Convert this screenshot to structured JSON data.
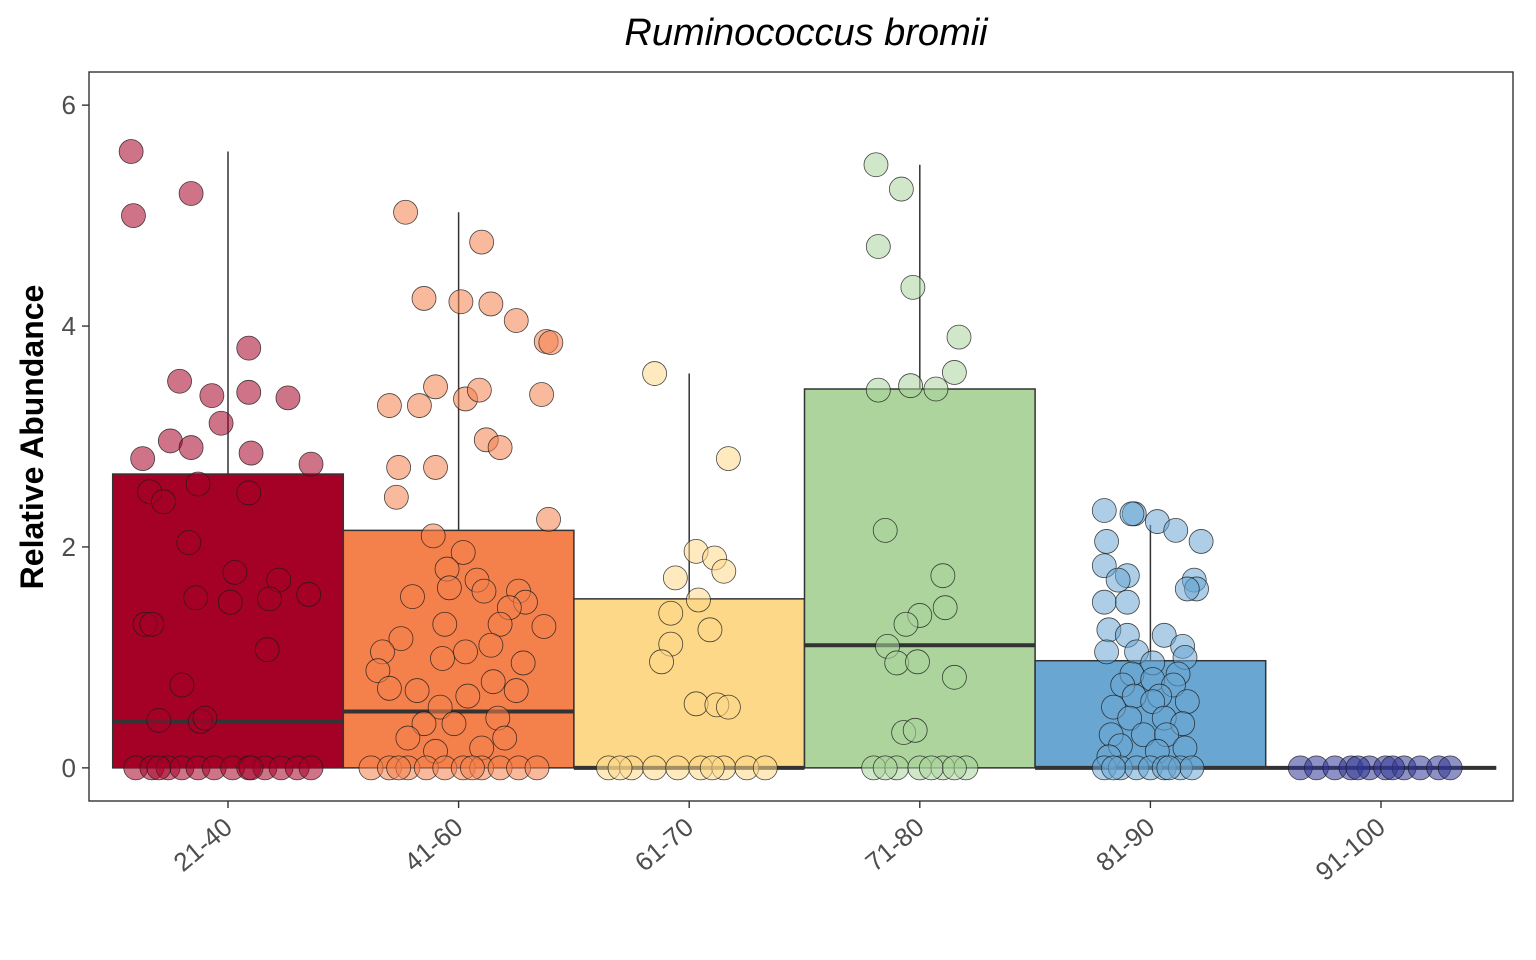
{
  "chart_data": {
    "type": "box",
    "title": "Ruminococcus bromii",
    "xlabel": "",
    "ylabel": "Relative Abundance",
    "ylim": [
      -0.3,
      6.3
    ],
    "y_ticks": [
      0,
      2,
      4,
      6
    ],
    "grid": false,
    "legend": "none",
    "categories": [
      "21-40",
      "41-60",
      "61-70",
      "71-80",
      "81-90",
      "91-100"
    ],
    "colors": [
      "#A50026",
      "#F4804C",
      "#FDD889",
      "#ACD49C",
      "#69A6D1",
      "#313695"
    ],
    "boxes": [
      {
        "lower": 0,
        "median": 0.42,
        "upper": 2.66,
        "whisker_low": 0,
        "whisker_high": 5.58
      },
      {
        "lower": 0,
        "median": 0.51,
        "upper": 2.15,
        "whisker_low": 0,
        "whisker_high": 5.03
      },
      {
        "lower": 0,
        "median": 0.0,
        "upper": 1.53,
        "whisker_low": 0,
        "whisker_high": 3.57
      },
      {
        "lower": 0,
        "median": 1.11,
        "upper": 3.43,
        "whisker_low": 0,
        "whisker_high": 5.46
      },
      {
        "lower": 0,
        "median": 0.0,
        "upper": 0.97,
        "whisker_low": 0,
        "whisker_high": 2.2
      },
      {
        "lower": 0,
        "median": 0.0,
        "upper": 0.0,
        "whisker_low": 0,
        "whisker_high": 0
      }
    ],
    "points": [
      [
        [
          -0.42,
          5.58
        ],
        [
          -0.41,
          5.0
        ],
        [
          -0.16,
          5.2
        ],
        [
          0.09,
          3.8
        ],
        [
          -0.21,
          3.5
        ],
        [
          -0.07,
          3.37
        ],
        [
          0.09,
          3.4
        ],
        [
          0.26,
          3.35
        ],
        [
          -0.03,
          3.12
        ],
        [
          -0.25,
          2.96
        ],
        [
          -0.16,
          2.9
        ],
        [
          0.1,
          2.85
        ],
        [
          -0.37,
          2.8
        ],
        [
          0.36,
          2.75
        ],
        [
          -0.34,
          2.5
        ],
        [
          -0.28,
          2.41
        ],
        [
          -0.13,
          2.57
        ],
        [
          0.09,
          2.49
        ],
        [
          -0.17,
          2.04
        ],
        [
          0.03,
          1.77
        ],
        [
          0.22,
          1.7
        ],
        [
          0.35,
          1.57
        ],
        [
          -0.14,
          1.54
        ],
        [
          0.01,
          1.5
        ],
        [
          0.18,
          1.53
        ],
        [
          -0.36,
          1.3
        ],
        [
          -0.33,
          1.3
        ],
        [
          0.17,
          1.07
        ],
        [
          -0.2,
          0.75
        ],
        [
          -0.3,
          0.43
        ],
        [
          -0.12,
          0.42
        ],
        [
          -0.1,
          0.45
        ],
        [
          -0.4,
          0
        ],
        [
          -0.33,
          0
        ],
        [
          -0.26,
          0
        ],
        [
          -0.2,
          0
        ],
        [
          -0.13,
          0
        ],
        [
          -0.06,
          0
        ],
        [
          0.02,
          0
        ],
        [
          0.09,
          0
        ],
        [
          0.16,
          0
        ],
        [
          0.23,
          0
        ],
        [
          0.3,
          0
        ],
        [
          0.36,
          0
        ],
        [
          -0.3,
          0
        ],
        [
          0.1,
          0
        ]
      ],
      [
        [
          -0.23,
          5.03
        ],
        [
          0.1,
          4.76
        ],
        [
          -0.15,
          4.25
        ],
        [
          0.01,
          4.22
        ],
        [
          0.14,
          4.2
        ],
        [
          0.25,
          4.05
        ],
        [
          0.38,
          3.86
        ],
        [
          0.4,
          3.85
        ],
        [
          -0.1,
          3.45
        ],
        [
          0.03,
          3.34
        ],
        [
          0.09,
          3.42
        ],
        [
          0.36,
          3.38
        ],
        [
          -0.3,
          3.28
        ],
        [
          -0.17,
          3.28
        ],
        [
          0.12,
          2.97
        ],
        [
          0.18,
          2.9
        ],
        [
          -0.26,
          2.72
        ],
        [
          -0.1,
          2.72
        ],
        [
          -0.27,
          2.45
        ],
        [
          0.39,
          2.25
        ],
        [
          -0.11,
          2.1
        ],
        [
          0.02,
          1.95
        ],
        [
          -0.05,
          1.8
        ],
        [
          0.08,
          1.7
        ],
        [
          -0.2,
          1.55
        ],
        [
          -0.04,
          1.63
        ],
        [
          0.11,
          1.6
        ],
        [
          0.26,
          1.6
        ],
        [
          0.29,
          1.5
        ],
        [
          0.22,
          1.45
        ],
        [
          -0.06,
          1.3
        ],
        [
          0.18,
          1.3
        ],
        [
          0.37,
          1.28
        ],
        [
          -0.25,
          1.17
        ],
        [
          0.14,
          1.11
        ],
        [
          -0.33,
          1.05
        ],
        [
          0.03,
          1.05
        ],
        [
          0.28,
          0.95
        ],
        [
          -0.07,
          0.99
        ],
        [
          -0.35,
          0.88
        ],
        [
          -0.3,
          0.72
        ],
        [
          -0.18,
          0.7
        ],
        [
          0.15,
          0.78
        ],
        [
          0.25,
          0.7
        ],
        [
          -0.08,
          0.55
        ],
        [
          0.04,
          0.65
        ],
        [
          0.17,
          0.45
        ],
        [
          -0.15,
          0.4
        ],
        [
          0.2,
          0.27
        ],
        [
          -0.02,
          0.4
        ],
        [
          -0.22,
          0.27
        ],
        [
          -0.1,
          0.15
        ],
        [
          0.1,
          0.18
        ],
        [
          -0.38,
          0
        ],
        [
          -0.3,
          0
        ],
        [
          -0.22,
          0
        ],
        [
          -0.14,
          0
        ],
        [
          -0.06,
          0
        ],
        [
          0.02,
          0
        ],
        [
          0.1,
          0
        ],
        [
          0.18,
          0
        ],
        [
          0.26,
          0
        ],
        [
          0.34,
          0
        ],
        [
          -0.26,
          0
        ],
        [
          0.06,
          0
        ]
      ],
      [
        [
          -0.15,
          3.57
        ],
        [
          0.17,
          2.8
        ],
        [
          0.03,
          1.96
        ],
        [
          0.11,
          1.9
        ],
        [
          0.15,
          1.78
        ],
        [
          -0.06,
          1.72
        ],
        [
          0.04,
          1.52
        ],
        [
          -0.08,
          1.4
        ],
        [
          0.09,
          1.25
        ],
        [
          -0.08,
          1.12
        ],
        [
          -0.12,
          0.96
        ],
        [
          0.03,
          0.58
        ],
        [
          0.12,
          0.57
        ],
        [
          0.17,
          0.55
        ],
        [
          -0.35,
          0
        ],
        [
          -0.25,
          0
        ],
        [
          -0.15,
          0
        ],
        [
          -0.05,
          0
        ],
        [
          0.05,
          0
        ],
        [
          0.15,
          0
        ],
        [
          0.25,
          0
        ],
        [
          0.33,
          0
        ],
        [
          -0.3,
          0
        ],
        [
          0.1,
          0
        ]
      ],
      [
        [
          -0.19,
          5.46
        ],
        [
          -0.08,
          5.24
        ],
        [
          -0.18,
          4.72
        ],
        [
          -0.03,
          4.35
        ],
        [
          0.17,
          3.9
        ],
        [
          0.15,
          3.58
        ],
        [
          -0.18,
          3.42
        ],
        [
          -0.04,
          3.46
        ],
        [
          0.07,
          3.43
        ],
        [
          -0.15,
          2.15
        ],
        [
          -0.14,
          1.1
        ],
        [
          0.1,
          1.74
        ],
        [
          0.0,
          1.38
        ],
        [
          -0.06,
          1.3
        ],
        [
          0.11,
          1.45
        ],
        [
          -0.1,
          0.95
        ],
        [
          -0.01,
          0.96
        ],
        [
          0.15,
          0.82
        ],
        [
          -0.07,
          0.32
        ],
        [
          -0.02,
          0.34
        ],
        [
          -0.2,
          0
        ],
        [
          -0.1,
          0
        ],
        [
          0.0,
          0
        ],
        [
          0.1,
          0
        ],
        [
          0.2,
          0
        ],
        [
          -0.15,
          0
        ],
        [
          0.05,
          0
        ],
        [
          0.15,
          0
        ]
      ],
      [
        [
          -0.2,
          2.33
        ],
        [
          -0.07,
          2.3
        ],
        [
          -0.08,
          2.3
        ],
        [
          0.03,
          2.23
        ],
        [
          0.11,
          2.15
        ],
        [
          0.22,
          2.05
        ],
        [
          -0.19,
          2.05
        ],
        [
          0.19,
          1.7
        ],
        [
          -0.2,
          1.83
        ],
        [
          -0.1,
          1.74
        ],
        [
          0.2,
          1.62
        ],
        [
          0.16,
          1.62
        ],
        [
          -0.14,
          1.7
        ],
        [
          -0.2,
          1.5
        ],
        [
          -0.1,
          1.5
        ],
        [
          -0.18,
          1.25
        ],
        [
          -0.1,
          1.2
        ],
        [
          0.06,
          1.2
        ],
        [
          0.14,
          1.1
        ],
        [
          -0.06,
          1.05
        ],
        [
          -0.19,
          1.05
        ],
        [
          0.01,
          0.95
        ],
        [
          0.15,
          1.0
        ],
        [
          -0.08,
          0.85
        ],
        [
          0.12,
          0.85
        ],
        [
          0.01,
          0.8
        ],
        [
          -0.12,
          0.75
        ],
        [
          0.1,
          0.75
        ],
        [
          0.04,
          0.65
        ],
        [
          -0.07,
          0.65
        ],
        [
          -0.16,
          0.55
        ],
        [
          0.01,
          0.6
        ],
        [
          0.16,
          0.6
        ],
        [
          -0.09,
          0.45
        ],
        [
          0.06,
          0.45
        ],
        [
          0.14,
          0.4
        ],
        [
          -0.17,
          0.3
        ],
        [
          -0.03,
          0.3
        ],
        [
          0.07,
          0.3
        ],
        [
          -0.13,
          0.2
        ],
        [
          0.03,
          0.15
        ],
        [
          0.15,
          0.18
        ],
        [
          -0.18,
          0.1
        ],
        [
          -0.2,
          0
        ],
        [
          -0.13,
          0
        ],
        [
          -0.06,
          0
        ],
        [
          0.0,
          0
        ],
        [
          0.06,
          0
        ],
        [
          0.13,
          0
        ],
        [
          0.18,
          0
        ],
        [
          -0.16,
          0
        ],
        [
          0.08,
          0
        ]
      ],
      [
        [
          -0.35,
          0
        ],
        [
          -0.28,
          0
        ],
        [
          -0.2,
          0
        ],
        [
          -0.13,
          0
        ],
        [
          -0.05,
          0
        ],
        [
          0.02,
          0
        ],
        [
          0.1,
          0
        ],
        [
          0.17,
          0
        ],
        [
          0.25,
          0
        ],
        [
          0.3,
          0
        ],
        [
          -0.1,
          0
        ],
        [
          0.05,
          0
        ]
      ]
    ]
  }
}
